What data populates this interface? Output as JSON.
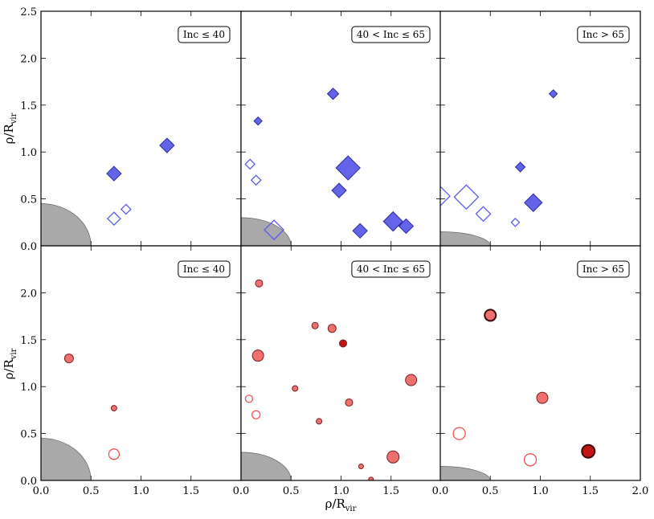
{
  "figure": {
    "ylabel_text": "ρ/R",
    "ylabel_sub": "vir",
    "xlabel_text": "ρ/R",
    "xlabel_sub": "vir"
  },
  "colors": {
    "blue_fill": "#6464ea",
    "blue_edge": "#2b2ba0",
    "blue_open": "#5c5cf0",
    "red_fill": "#f07070",
    "red_edge": "#7a1f1f",
    "red_open": "#f25050",
    "red_dark": "#c21515",
    "gray": "#a9a9a9"
  },
  "chart_data": [
    {
      "type": "scatter",
      "row": 0,
      "col": 0,
      "label": "Inc ≤ 40",
      "xlim": [
        0,
        2.0
      ],
      "ylim": [
        0,
        2.5
      ],
      "shaded_radius": [
        0.5,
        0.45
      ],
      "marker": "diamond",
      "points": [
        {
          "x": 0.73,
          "y": 0.77,
          "size": 9,
          "filled": true
        },
        {
          "x": 1.26,
          "y": 1.07,
          "size": 9,
          "filled": true
        },
        {
          "x": 0.73,
          "y": 0.29,
          "size": 8,
          "filled": false
        },
        {
          "x": 0.85,
          "y": 0.39,
          "size": 6,
          "filled": false
        }
      ]
    },
    {
      "type": "scatter",
      "row": 0,
      "col": 1,
      "label": "40 < Inc ≤ 65",
      "xlim": [
        0,
        2.0
      ],
      "ylim": [
        0,
        2.5
      ],
      "shaded_radius": [
        0.5,
        0.3
      ],
      "marker": "diamond",
      "points": [
        {
          "x": 0.92,
          "y": 1.62,
          "size": 7,
          "filled": true
        },
        {
          "x": 0.17,
          "y": 1.33,
          "size": 5,
          "filled": true
        },
        {
          "x": 1.07,
          "y": 0.83,
          "size": 15,
          "filled": true
        },
        {
          "x": 0.98,
          "y": 0.59,
          "size": 9,
          "filled": true
        },
        {
          "x": 1.52,
          "y": 0.26,
          "size": 12,
          "filled": true
        },
        {
          "x": 1.65,
          "y": 0.21,
          "size": 9,
          "filled": true
        },
        {
          "x": 1.19,
          "y": 0.16,
          "size": 9,
          "filled": true
        },
        {
          "x": 0.09,
          "y": 0.87,
          "size": 6,
          "filled": false
        },
        {
          "x": 0.15,
          "y": 0.7,
          "size": 6,
          "filled": false
        },
        {
          "x": 0.33,
          "y": 0.17,
          "size": 12,
          "filled": false
        }
      ]
    },
    {
      "type": "scatter",
      "row": 0,
      "col": 2,
      "label": "Inc > 65",
      "xlim": [
        0,
        2.0
      ],
      "ylim": [
        0,
        2.5
      ],
      "shaded_radius": [
        0.5,
        0.15
      ],
      "marker": "diamond",
      "points": [
        {
          "x": 1.13,
          "y": 1.62,
          "size": 5,
          "filled": true
        },
        {
          "x": 0.8,
          "y": 0.84,
          "size": 6,
          "filled": true
        },
        {
          "x": 0.93,
          "y": 0.46,
          "size": 11,
          "filled": true
        },
        {
          "x": 0.0,
          "y": 0.53,
          "size": 12,
          "filled": false
        },
        {
          "x": 0.26,
          "y": 0.52,
          "size": 15,
          "filled": false
        },
        {
          "x": 0.43,
          "y": 0.34,
          "size": 9,
          "filled": false
        },
        {
          "x": 0.75,
          "y": 0.25,
          "size": 5,
          "filled": false
        }
      ]
    },
    {
      "type": "scatter",
      "row": 1,
      "col": 0,
      "label": "Inc ≤ 40",
      "xlim": [
        0,
        2.0
      ],
      "ylim": [
        0,
        2.5
      ],
      "shaded_radius": [
        0.5,
        0.45
      ],
      "marker": "circle",
      "points": [
        {
          "x": 0.28,
          "y": 1.3,
          "size": 9,
          "style": "filled"
        },
        {
          "x": 0.73,
          "y": 0.77,
          "size": 5,
          "style": "filled"
        },
        {
          "x": 0.73,
          "y": 0.28,
          "size": 11,
          "style": "open"
        }
      ]
    },
    {
      "type": "scatter",
      "row": 1,
      "col": 1,
      "label": "40 < Inc ≤ 65",
      "xlim": [
        0,
        2.0
      ],
      "ylim": [
        0,
        2.5
      ],
      "shaded_radius": [
        0.5,
        0.3
      ],
      "marker": "circle",
      "points": [
        {
          "x": 0.18,
          "y": 2.1,
          "size": 7,
          "style": "filled"
        },
        {
          "x": 0.74,
          "y": 1.65,
          "size": 6,
          "style": "filled"
        },
        {
          "x": 0.91,
          "y": 1.62,
          "size": 8,
          "style": "filled"
        },
        {
          "x": 1.02,
          "y": 1.46,
          "size": 7,
          "style": "dark"
        },
        {
          "x": 0.17,
          "y": 1.33,
          "size": 12,
          "style": "filled"
        },
        {
          "x": 1.7,
          "y": 1.07,
          "size": 12,
          "style": "filled"
        },
        {
          "x": 0.54,
          "y": 0.98,
          "size": 5,
          "style": "filled"
        },
        {
          "x": 1.08,
          "y": 0.83,
          "size": 7,
          "style": "filled"
        },
        {
          "x": 0.78,
          "y": 0.63,
          "size": 5,
          "style": "filled"
        },
        {
          "x": 1.52,
          "y": 0.25,
          "size": 13,
          "style": "filled"
        },
        {
          "x": 1.2,
          "y": 0.15,
          "size": 4,
          "style": "filled"
        },
        {
          "x": 1.3,
          "y": 0.01,
          "size": 4,
          "style": "filled"
        },
        {
          "x": 0.08,
          "y": 0.87,
          "size": 7,
          "style": "open"
        },
        {
          "x": 0.15,
          "y": 0.7,
          "size": 8,
          "style": "open"
        }
      ]
    },
    {
      "type": "scatter",
      "row": 1,
      "col": 2,
      "label": "Inc > 65",
      "xlim": [
        0,
        2.0
      ],
      "ylim": [
        0,
        2.5
      ],
      "shaded_radius": [
        0.5,
        0.15
      ],
      "marker": "circle",
      "points": [
        {
          "x": 0.5,
          "y": 1.76,
          "size": 12,
          "style": "filled_ring"
        },
        {
          "x": 1.02,
          "y": 0.88,
          "size": 12,
          "style": "filled"
        },
        {
          "x": 1.48,
          "y": 0.31,
          "size": 14,
          "style": "dark_ring"
        },
        {
          "x": 0.19,
          "y": 0.5,
          "size": 13,
          "style": "open"
        },
        {
          "x": 0.9,
          "y": 0.22,
          "size": 13,
          "style": "open"
        }
      ]
    }
  ],
  "axes": {
    "yticks_top": [
      "0.0",
      "0.5",
      "1.0",
      "1.5",
      "2.0",
      "2.5"
    ],
    "yticks_top_values": [
      0,
      0.5,
      1.0,
      1.5,
      2.0,
      2.5
    ],
    "yticks_bottom": [
      "0.0",
      "0.5",
      "1.0",
      "1.5",
      "2.0"
    ],
    "yticks_bottom_values": [
      0,
      0.5,
      1.0,
      1.5,
      2.0
    ],
    "xticks_col0": [
      "0.0",
      "0.5",
      "1.0",
      "1.5"
    ],
    "xticks_col1": [
      "0.0",
      "0.5",
      "1.0",
      "1.5"
    ],
    "xticks_col2": [
      "0.0",
      "0.5",
      "1.0",
      "1.5",
      "2.0"
    ],
    "xtick_values": [
      0,
      0.5,
      1.0,
      1.5,
      2.0
    ]
  }
}
